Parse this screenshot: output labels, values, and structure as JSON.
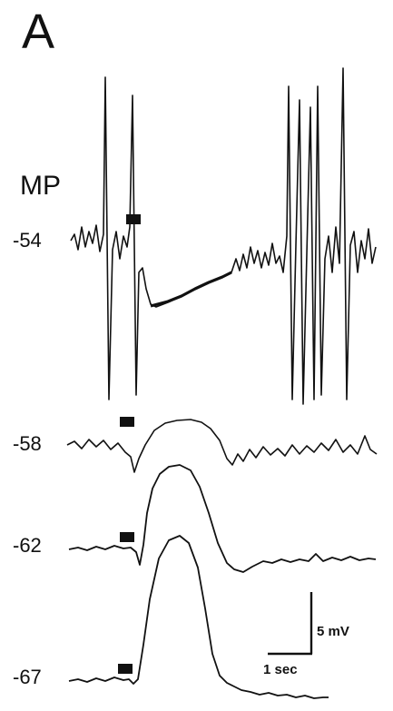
{
  "figure": {
    "panel_label": "A",
    "mp_label": "MP",
    "traces": [
      {
        "potential": "-54",
        "behavior": "spiking, then hyperpolarization after stimulus, then resumed spiking"
      },
      {
        "potential": "-58",
        "behavior": "small depolarizing response after stimulus"
      },
      {
        "potential": "-62",
        "behavior": "larger depolarizing response after stimulus"
      },
      {
        "potential": "-67",
        "behavior": "largest depolarizing response after stimulus"
      }
    ],
    "stimulus_marker": "filled-bar",
    "scale_bar": {
      "voltage": "5 mV",
      "time": "1 sec"
    }
  }
}
